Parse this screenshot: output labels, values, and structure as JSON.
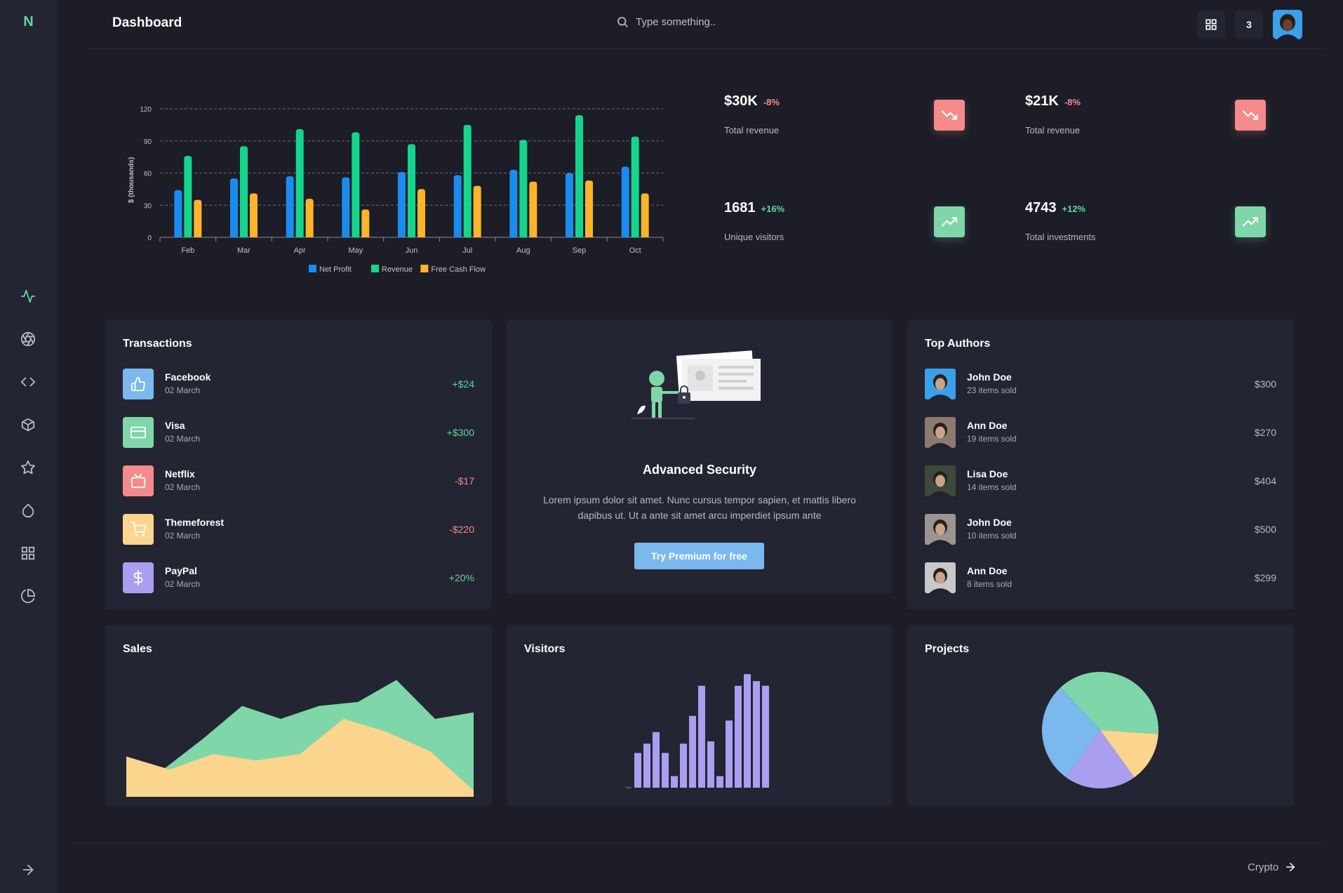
{
  "sidebar": {
    "logo": "N",
    "icons": [
      "activity-icon",
      "aperture-icon",
      "code-icon",
      "box-icon",
      "star-icon",
      "droplet-icon",
      "grid-icon",
      "pie-chart-icon"
    ],
    "collapse_icon": "arrow-right-icon"
  },
  "header": {
    "title": "Dashboard",
    "search_placeholder": "Type something..",
    "notification_count": "3"
  },
  "stats": [
    {
      "value": "$30K",
      "change": "-8%",
      "label": "Total revenue",
      "trend": "down"
    },
    {
      "value": "$21K",
      "change": "-8%",
      "label": "Total revenue",
      "trend": "down"
    },
    {
      "value": "1681",
      "change": "+16%",
      "label": "Unique visitors",
      "trend": "up"
    },
    {
      "value": "4743",
      "change": "+12%",
      "label": "Total investments",
      "trend": "up"
    }
  ],
  "transactions": {
    "title": "Transactions",
    "items": [
      {
        "name": "Facebook",
        "date": "02 March",
        "amount": "+$24",
        "color": "#7ab8ee",
        "icon": "thumbs-up-icon",
        "sign": "pos"
      },
      {
        "name": "Visa",
        "date": "02 March",
        "amount": "+$300",
        "color": "#7fd6a9",
        "icon": "credit-card-icon",
        "sign": "pos"
      },
      {
        "name": "Netflix",
        "date": "02 March",
        "amount": "-$17",
        "color": "#f48a8a",
        "icon": "tv-icon",
        "sign": "neg"
      },
      {
        "name": "Themeforest",
        "date": "02 March",
        "amount": "-$220",
        "color": "#fbd48e",
        "icon": "shopping-cart-icon",
        "sign": "neg"
      },
      {
        "name": "PayPal",
        "date": "02 March",
        "amount": "+20%",
        "color": "#a99ef0",
        "icon": "dollar-sign-icon",
        "sign": "pos"
      }
    ]
  },
  "security": {
    "title": "Advanced Security",
    "text": "Lorem ipsum dolor sit amet. Nunc cursus tempor sapien, et mattis libero dapibus ut. Ut a ante sit amet arcu imperdiet ipsum ante",
    "button": "Try Premium for free"
  },
  "authors": {
    "title": "Top Authors",
    "items": [
      {
        "name": "John Doe",
        "sold": "23 items sold",
        "amount": "$300",
        "bg": "#3aa0e8"
      },
      {
        "name": "Ann Doe",
        "sold": "19 items sold",
        "amount": "$270",
        "bg": "#8a7a70"
      },
      {
        "name": "Lisa Doe",
        "sold": "14 items sold",
        "amount": "$404",
        "bg": "#3b4a3a"
      },
      {
        "name": "John Doe",
        "sold": "10 items sold",
        "amount": "$500",
        "bg": "#9a9590"
      },
      {
        "name": "Ann Doe",
        "sold": "8 items sold",
        "amount": "$299",
        "bg": "#c8c8c8"
      }
    ]
  },
  "sales": {
    "title": "Sales"
  },
  "visitors": {
    "title": "Visitors"
  },
  "projects": {
    "title": "Projects"
  },
  "footer": {
    "link": "Crypto"
  },
  "chart_data": [
    {
      "type": "bar",
      "categories": [
        "Feb",
        "Mar",
        "Apr",
        "May",
        "Jun",
        "Jul",
        "Aug",
        "Sep",
        "Oct"
      ],
      "series": [
        {
          "name": "Net Profit",
          "color": "#1a8cf0",
          "values": [
            44,
            55,
            57,
            56,
            61,
            58,
            63,
            60,
            66
          ]
        },
        {
          "name": "Revenue",
          "color": "#13d68c",
          "values": [
            76,
            85,
            101,
            98,
            87,
            105,
            91,
            114,
            94
          ]
        },
        {
          "name": "Free Cash Flow",
          "color": "#fdb42a",
          "values": [
            35,
            41,
            36,
            26,
            45,
            48,
            52,
            53,
            41
          ]
        }
      ],
      "ylabel": "$ (thousands)",
      "yticks": [
        0,
        30,
        60,
        90,
        120
      ],
      "ylim": [
        0,
        120
      ],
      "grid": true,
      "legend": "bottom"
    },
    {
      "type": "area",
      "series": [
        {
          "color": "#7fd6a9",
          "values": [
            31,
            22,
            45,
            70,
            60,
            70,
            73,
            90,
            60,
            65
          ]
        },
        {
          "color": "#fbd48e",
          "values": [
            31,
            21,
            33,
            28,
            33,
            60,
            50,
            35,
            5
          ]
        }
      ]
    },
    {
      "type": "bar",
      "color": "#a99ef0",
      "values": [
        30,
        38,
        48,
        30,
        10,
        38,
        62,
        88,
        40,
        10,
        58,
        88,
        98,
        92,
        88
      ]
    },
    {
      "type": "pie",
      "slices": [
        {
          "value": 38,
          "color": "#7fd6a9"
        },
        {
          "value": 14,
          "color": "#fbd48e"
        },
        {
          "value": 20,
          "color": "#a99ef0"
        },
        {
          "value": 28,
          "color": "#7ab8ee"
        }
      ]
    }
  ]
}
